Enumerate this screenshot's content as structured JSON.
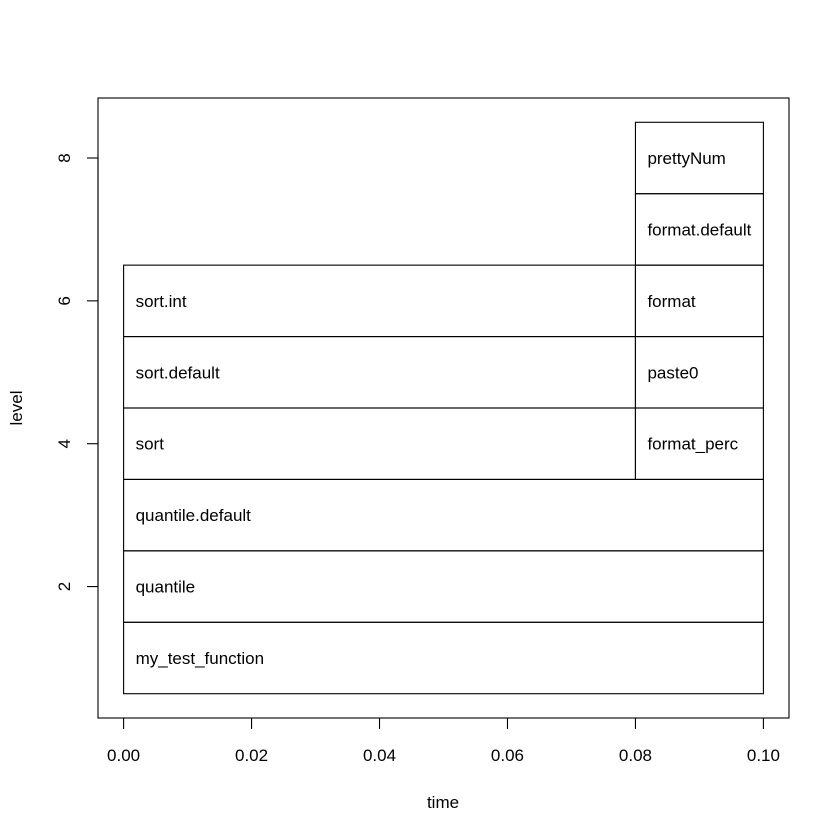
{
  "chart_data": {
    "type": "flame-graph",
    "xlabel": "time",
    "ylabel": "level",
    "xlim": [
      -0.004,
      0.104
    ],
    "ylim": [
      0.16,
      8.84
    ],
    "x_ticks": [
      {
        "value": 0.0,
        "label": "0.00"
      },
      {
        "value": 0.02,
        "label": "0.02"
      },
      {
        "value": 0.04,
        "label": "0.04"
      },
      {
        "value": 0.06,
        "label": "0.06"
      },
      {
        "value": 0.08,
        "label": "0.08"
      },
      {
        "value": 0.1,
        "label": "0.10"
      }
    ],
    "y_ticks": [
      {
        "value": 2,
        "label": "2"
      },
      {
        "value": 4,
        "label": "4"
      },
      {
        "value": 6,
        "label": "6"
      },
      {
        "value": 8,
        "label": "8"
      }
    ],
    "frames": [
      {
        "label": "my_test_function",
        "start": 0.0,
        "end": 0.1,
        "level": 1
      },
      {
        "label": "quantile",
        "start": 0.0,
        "end": 0.1,
        "level": 2
      },
      {
        "label": "quantile.default",
        "start": 0.0,
        "end": 0.1,
        "level": 3
      },
      {
        "label": "sort",
        "start": 0.0,
        "end": 0.08,
        "level": 4
      },
      {
        "label": "sort.default",
        "start": 0.0,
        "end": 0.08,
        "level": 5
      },
      {
        "label": "sort.int",
        "start": 0.0,
        "end": 0.08,
        "level": 6
      },
      {
        "label": "format_perc",
        "start": 0.08,
        "end": 0.1,
        "level": 4
      },
      {
        "label": "paste0",
        "start": 0.08,
        "end": 0.1,
        "level": 5
      },
      {
        "label": "format",
        "start": 0.08,
        "end": 0.1,
        "level": 6
      },
      {
        "label": "format.default",
        "start": 0.08,
        "end": 0.1,
        "level": 7
      },
      {
        "label": "prettyNum",
        "start": 0.08,
        "end": 0.1,
        "level": 8
      }
    ]
  }
}
